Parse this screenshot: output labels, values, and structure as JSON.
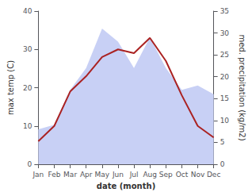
{
  "chart_data": {
    "type": "line",
    "xlabel": "date (month)",
    "ylabel": "max temp (C)",
    "y2label": "med. precipitation (kg/m2)",
    "categories": [
      "Jan",
      "Feb",
      "Mar",
      "Apr",
      "May",
      "Jun",
      "Jul",
      "Aug",
      "Sep",
      "Oct",
      "Nov",
      "Dec"
    ],
    "series": [
      {
        "type": "area",
        "axis": "y2",
        "color": "#c8d0f5",
        "values": [
          8,
          9,
          17,
          22,
          31,
          28,
          22,
          29,
          22,
          17,
          18,
          16
        ]
      },
      {
        "type": "line",
        "color": "#aa2222",
        "values": [
          6,
          10,
          19,
          23,
          28,
          30,
          29,
          33,
          27,
          18,
          10,
          7
        ]
      }
    ],
    "ylim": [
      0,
      40
    ],
    "yticks": [
      0,
      10,
      20,
      30,
      40
    ],
    "y2lim": [
      0,
      35
    ],
    "y2ticks": [
      0,
      5,
      10,
      15,
      20,
      25,
      30,
      35
    ],
    "grid": false
  }
}
